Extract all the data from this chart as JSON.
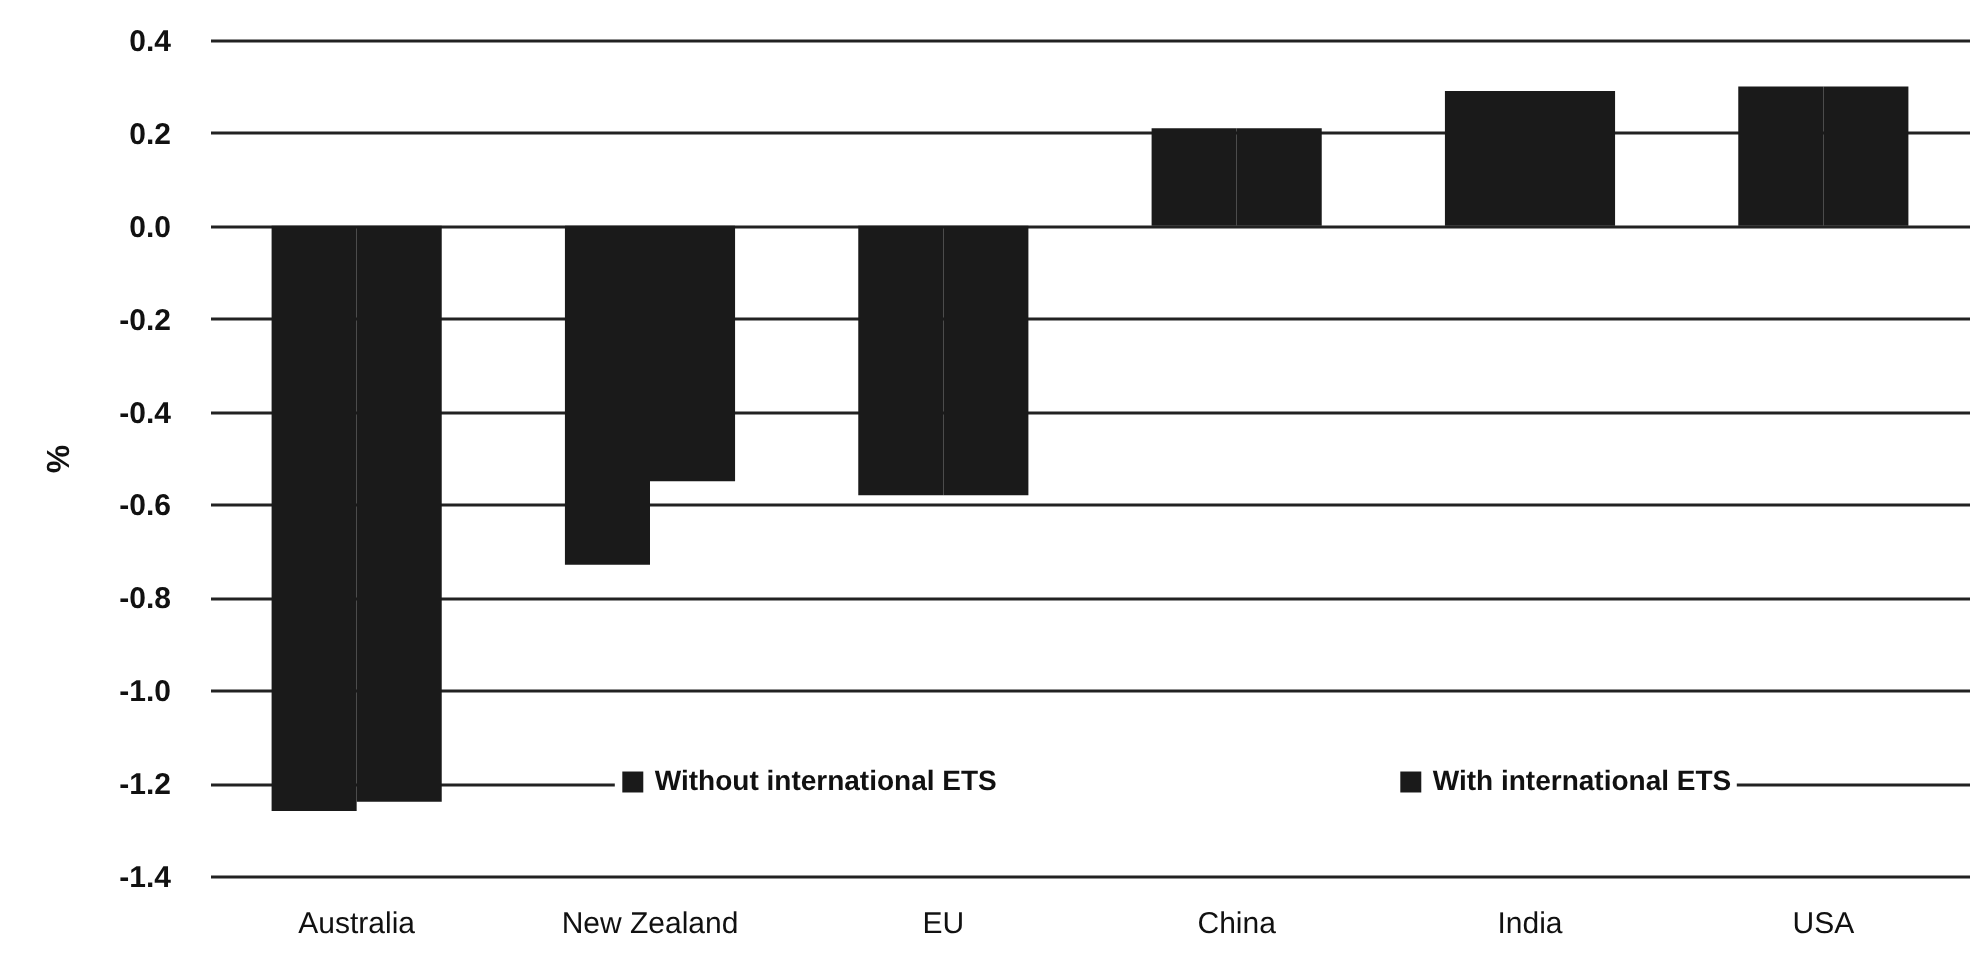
{
  "chart_data": {
    "type": "bar",
    "ylabel": "%",
    "categories": [
      "Australia",
      "New Zealand",
      "EU",
      "China",
      "India",
      "USA"
    ],
    "series": [
      {
        "name": "Without international ETS",
        "color": "#1a1a1a",
        "values": [
          -1.26,
          -0.73,
          -0.58,
          0.21,
          0.29,
          0.3
        ]
      },
      {
        "name": "With international ETS",
        "color": "#1a1a1a",
        "values": [
          -1.24,
          -0.55,
          -0.58,
          0.21,
          0.29,
          0.3
        ]
      }
    ],
    "ylim": [
      -1.4,
      0.4
    ],
    "yticks": [
      -1.4,
      -1.2,
      {
        "value": -1,
        "label": "-1.0"
      },
      -0.8,
      -0.6,
      -0.4,
      -0.2,
      {
        "value": 0,
        "label": "0.0"
      },
      0.2,
      0.4
    ],
    "grid": "y",
    "legend": "bottom"
  }
}
